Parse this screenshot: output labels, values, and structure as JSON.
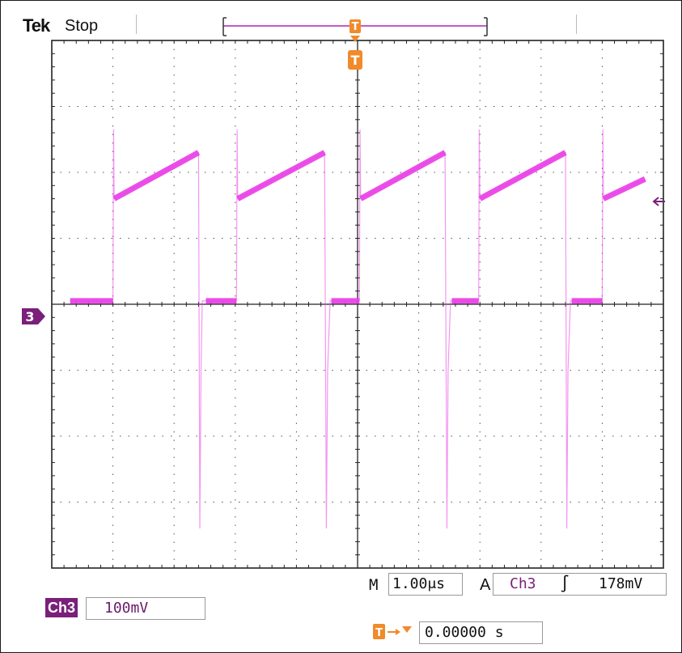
{
  "header": {
    "brand": "Tek",
    "acquisition_state": "Stop"
  },
  "channel": {
    "badge": "Ch3",
    "marker": "3",
    "scale": "100mV"
  },
  "timebase": {
    "label": "M",
    "value": "1.00μs"
  },
  "trigger": {
    "mode": "A",
    "source": "Ch3",
    "slope": "rising",
    "slope_glyph": "∫",
    "level": "178mV",
    "marker": "T"
  },
  "horizontal_position": {
    "value": "0.00000 s"
  },
  "colors": {
    "trace": "#e93fe6",
    "channel": "#7a1f7a",
    "trigger_marker": "#f08a2a",
    "grid": "#222222"
  },
  "icons": [
    "ground-marker-icon",
    "trigger-position-icon",
    "trigger-level-arrow-icon",
    "rising-edge-icon"
  ],
  "chart_data": {
    "type": "line",
    "xlabel": "",
    "ylabel": "",
    "xlim": [
      -5,
      5
    ],
    "ylim": [
      -400,
      400
    ],
    "grid": true,
    "series": [
      {
        "color": "#e93fe6",
        "x": [
          -4.7,
          -4.0,
          -3.99,
          -3.98,
          -2.6,
          -2.58,
          -2.56,
          -2.54,
          -2.5,
          -2.48,
          -1.98,
          -1.97,
          -1.96,
          -0.54,
          -0.51,
          -0.49,
          -0.45,
          -0.43,
          0.03,
          0.04,
          0.05,
          1.43,
          1.46,
          1.48,
          1.52,
          1.54,
          1.98,
          1.99,
          2.0,
          3.4,
          3.42,
          3.44,
          3.48,
          3.5,
          4.0,
          4.01,
          4.02,
          4.7
        ],
        "y": [
          5,
          5,
          265,
          160,
          230,
          -340,
          -100,
          5,
          5,
          5,
          5,
          265,
          160,
          230,
          -340,
          -100,
          5,
          5,
          5,
          265,
          160,
          230,
          -340,
          -100,
          5,
          5,
          5,
          265,
          160,
          230,
          -340,
          -100,
          5,
          5,
          5,
          265,
          160,
          190
        ]
      }
    ]
  }
}
